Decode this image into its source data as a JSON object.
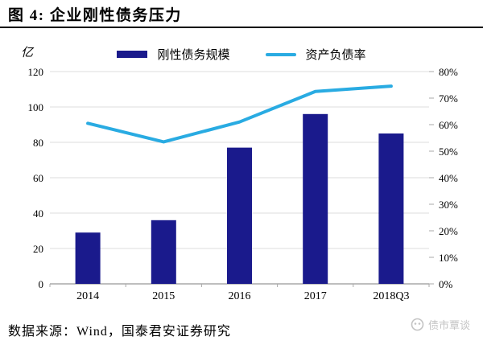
{
  "title": "图 4: 企业刚性债务压力",
  "unit_label": "亿",
  "source_note": "数据来源：Wind，国泰君安证券研究",
  "watermark_text": "债市覃谈",
  "colors": {
    "bar": "#1A1A8C",
    "line": "#29ABE2",
    "grid": "#DCDCDC",
    "axis_line": "#A9A9A9",
    "tick": "#A9A9A9",
    "watermark": "#C4C4C4",
    "title_rule": "#000000"
  },
  "chart_data": {
    "type": "bar+line",
    "title": "图 4: 企业刚性债务压力",
    "categories": [
      "2014",
      "2015",
      "2016",
      "2017",
      "2018Q3"
    ],
    "series": [
      {
        "name": "刚性债务规模",
        "type": "bar",
        "axis": "left",
        "color": "#1A1A8C",
        "values": [
          29,
          36,
          77,
          96,
          85
        ]
      },
      {
        "name": "资产负债率",
        "type": "line",
        "axis": "right",
        "color": "#29ABE2",
        "values": [
          60.5,
          53.5,
          61,
          72.5,
          74.5
        ]
      }
    ],
    "left_axis": {
      "title": "亿",
      "min": 0,
      "max": 120,
      "tick_step": 20,
      "ticks": [
        "120",
        "100",
        "80",
        "60",
        "40",
        "20",
        "0"
      ]
    },
    "right_axis": {
      "min": 0,
      "max": 80,
      "tick_step": 10,
      "ticks": [
        "80%",
        "70%",
        "60%",
        "50%",
        "40%",
        "30%",
        "20%",
        "10%",
        "0%"
      ]
    },
    "grid": true,
    "legend_position": "top"
  }
}
